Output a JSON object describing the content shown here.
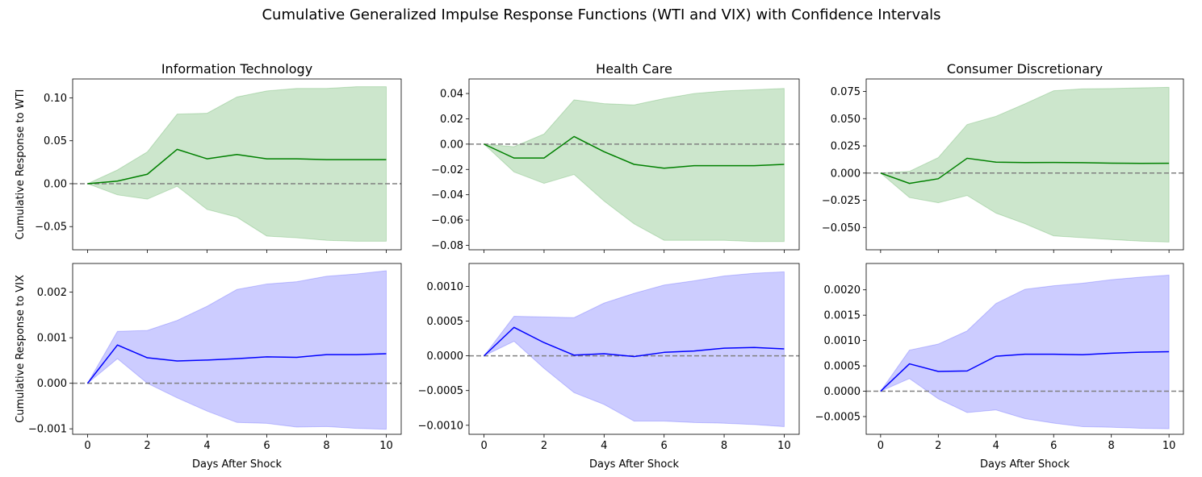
{
  "figure": {
    "title": "Cumulative Generalized Impulse Response Functions (WTI and VIX) with Confidence Intervals"
  },
  "chart_data": [
    {
      "type": "line",
      "title": "Information Technology",
      "xlabel": "",
      "ylabel": "Cumulative Response to WTI",
      "x": [
        0,
        1,
        2,
        3,
        4,
        5,
        6,
        7,
        8,
        9,
        10
      ],
      "xlim": [
        -0.5,
        10.5
      ],
      "ylim": [
        -0.077,
        0.122
      ],
      "xticks": [
        0,
        2,
        4,
        6,
        8,
        10
      ],
      "xtick_labels": [
        "",
        "",
        "",
        "",
        "",
        ""
      ],
      "yticks": [
        -0.05,
        0.0,
        0.05,
        0.1
      ],
      "ytick_labels": [
        "−0.05",
        "0.00",
        "0.05",
        "0.10"
      ],
      "zero_line": 0,
      "color": "#008000",
      "band_color": "#008000",
      "values": [
        0.0,
        0.003,
        0.011,
        0.04,
        0.029,
        0.034,
        0.029,
        0.029,
        0.028,
        0.028,
        0.028
      ],
      "lower": [
        0.0,
        -0.013,
        -0.018,
        -0.003,
        -0.03,
        -0.039,
        -0.061,
        -0.063,
        -0.066,
        -0.067,
        -0.067
      ],
      "upper": [
        0.0,
        0.016,
        0.037,
        0.081,
        0.082,
        0.101,
        0.108,
        0.111,
        0.111,
        0.113,
        0.113
      ]
    },
    {
      "type": "line",
      "title": "Health Care",
      "xlabel": "",
      "ylabel": "",
      "x": [
        0,
        1,
        2,
        3,
        4,
        5,
        6,
        7,
        8,
        9,
        10
      ],
      "xlim": [
        -0.5,
        10.5
      ],
      "ylim": [
        -0.0835,
        0.0515
      ],
      "xticks": [
        0,
        2,
        4,
        6,
        8,
        10
      ],
      "xtick_labels": [
        "",
        "",
        "",
        "",
        "",
        ""
      ],
      "yticks": [
        -0.08,
        -0.06,
        -0.04,
        -0.02,
        0.0,
        0.02,
        0.04
      ],
      "ytick_labels": [
        "−0.08",
        "−0.06",
        "−0.04",
        "−0.02",
        "0.00",
        "0.02",
        "0.04"
      ],
      "zero_line": 0,
      "color": "#008000",
      "band_color": "#008000",
      "values": [
        0.0,
        -0.011,
        -0.011,
        0.006,
        -0.006,
        -0.016,
        -0.019,
        -0.017,
        -0.017,
        -0.017,
        -0.016
      ],
      "lower": [
        0.0,
        -0.022,
        -0.031,
        -0.024,
        -0.045,
        -0.063,
        -0.076,
        -0.076,
        -0.076,
        -0.077,
        -0.077
      ],
      "upper": [
        0.0,
        -0.002,
        0.008,
        0.035,
        0.032,
        0.031,
        0.036,
        0.04,
        0.042,
        0.043,
        0.044
      ]
    },
    {
      "type": "line",
      "title": "Consumer Discretionary",
      "xlabel": "",
      "ylabel": "",
      "x": [
        0,
        1,
        2,
        3,
        4,
        5,
        6,
        7,
        8,
        9,
        10
      ],
      "xlim": [
        -0.5,
        10.5
      ],
      "ylim": [
        -0.0705,
        0.0865
      ],
      "xticks": [
        0,
        2,
        4,
        6,
        8,
        10
      ],
      "xtick_labels": [
        "",
        "",
        "",
        "",
        "",
        ""
      ],
      "yticks": [
        -0.05,
        -0.025,
        0.0,
        0.025,
        0.05,
        0.075
      ],
      "ytick_labels": [
        "−0.050",
        "−0.025",
        "0.000",
        "0.025",
        "0.050",
        "0.075"
      ],
      "zero_line": 0,
      "color": "#008000",
      "band_color": "#008000",
      "values": [
        0.0,
        -0.0095,
        -0.0052,
        0.0136,
        0.01,
        0.0097,
        0.0098,
        0.0096,
        0.0091,
        0.0089,
        0.009
      ],
      "lower": [
        0.0,
        -0.0225,
        -0.0273,
        -0.0206,
        -0.0368,
        -0.0465,
        -0.0577,
        -0.0594,
        -0.0611,
        -0.0625,
        -0.0634
      ],
      "upper": [
        0.0,
        0.0016,
        0.0142,
        0.0446,
        0.0522,
        0.0636,
        0.0757,
        0.0774,
        0.0777,
        0.0784,
        0.0788
      ]
    },
    {
      "type": "line",
      "title": "",
      "xlabel": "Days After Shock",
      "ylabel": "Cumulative Response to VIX",
      "x": [
        0,
        1,
        2,
        3,
        4,
        5,
        6,
        7,
        8,
        9,
        10
      ],
      "xlim": [
        -0.5,
        10.5
      ],
      "ylim": [
        -0.00112,
        0.00263
      ],
      "xticks": [
        0,
        2,
        4,
        6,
        8,
        10
      ],
      "xtick_labels": [
        "0",
        "2",
        "4",
        "6",
        "8",
        "10"
      ],
      "yticks": [
        -0.001,
        0.0,
        0.001,
        0.002
      ],
      "ytick_labels": [
        "−0.001",
        "0.000",
        "0.001",
        "0.002"
      ],
      "zero_line": 0,
      "color": "#0000ff",
      "band_color": "#0000ff",
      "values": [
        0.0,
        0.00084,
        0.00056,
        0.00049,
        0.00051,
        0.00054,
        0.00058,
        0.00057,
        0.00063,
        0.00063,
        0.00065
      ],
      "lower": [
        0.0,
        0.00054,
        0.0,
        -0.00032,
        -0.00061,
        -0.00086,
        -0.00088,
        -0.00096,
        -0.00095,
        -0.00099,
        -0.00101
      ],
      "upper": [
        0.0,
        0.00114,
        0.00116,
        0.00138,
        0.00169,
        0.00206,
        0.00218,
        0.00223,
        0.00235,
        0.0024,
        0.00247
      ]
    },
    {
      "type": "line",
      "title": "",
      "xlabel": "Days After Shock",
      "ylabel": "",
      "x": [
        0,
        1,
        2,
        3,
        4,
        5,
        6,
        7,
        8,
        9,
        10
      ],
      "xlim": [
        -0.5,
        10.5
      ],
      "ylim": [
        -0.00113,
        0.00133
      ],
      "xticks": [
        0,
        2,
        4,
        6,
        8,
        10
      ],
      "xtick_labels": [
        "0",
        "2",
        "4",
        "6",
        "8",
        "10"
      ],
      "yticks": [
        -0.001,
        -0.0005,
        0.0,
        0.0005,
        0.001
      ],
      "ytick_labels": [
        "−0.0010",
        "−0.0005",
        "0.0000",
        "0.0005",
        "0.0010"
      ],
      "zero_line": 0,
      "color": "#0000ff",
      "band_color": "#0000ff",
      "values": [
        0.0,
        0.00041,
        0.00019,
        1e-05,
        3e-05,
        -1e-05,
        5e-05,
        7e-05,
        0.00011,
        0.00012,
        0.0001
      ],
      "lower": [
        0.0,
        0.00021,
        -0.00018,
        -0.00053,
        -0.0007,
        -0.00094,
        -0.00094,
        -0.00096,
        -0.00097,
        -0.00099,
        -0.00102
      ],
      "upper": [
        0.0,
        0.00057,
        0.00056,
        0.00055,
        0.00076,
        0.0009,
        0.00102,
        0.00108,
        0.00115,
        0.00119,
        0.00121
      ]
    },
    {
      "type": "line",
      "title": "",
      "xlabel": "Days After Shock",
      "ylabel": "",
      "x": [
        0,
        1,
        2,
        3,
        4,
        5,
        6,
        7,
        8,
        9,
        10
      ],
      "xlim": [
        -0.5,
        10.5
      ],
      "ylim": [
        -0.00085,
        0.00252
      ],
      "xticks": [
        0,
        2,
        4,
        6,
        8,
        10
      ],
      "xtick_labels": [
        "0",
        "2",
        "4",
        "6",
        "8",
        "10"
      ],
      "yticks": [
        -0.0005,
        0.0,
        0.0005,
        0.001,
        0.0015,
        0.002
      ],
      "ytick_labels": [
        "−0.0005",
        "0.0000",
        "0.0005",
        "0.0010",
        "0.0015",
        "0.0020"
      ],
      "zero_line": 0,
      "color": "#0000ff",
      "band_color": "#0000ff",
      "values": [
        0.0,
        0.00054,
        0.00039,
        0.0004,
        0.00069,
        0.00073,
        0.00073,
        0.00072,
        0.00075,
        0.00077,
        0.00078
      ],
      "lower": [
        0.0,
        0.00025,
        -0.00015,
        -0.00042,
        -0.00037,
        -0.00054,
        -0.00063,
        -0.0007,
        -0.00071,
        -0.00073,
        -0.00074
      ],
      "upper": [
        0.0,
        0.00081,
        0.00093,
        0.00119,
        0.00173,
        0.00201,
        0.00208,
        0.00213,
        0.0022,
        0.00225,
        0.00229
      ]
    }
  ]
}
